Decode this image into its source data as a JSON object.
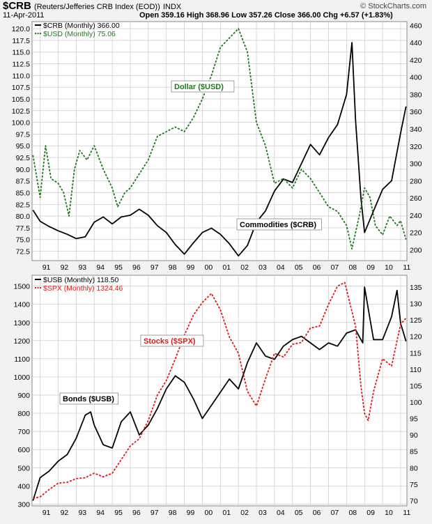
{
  "header": {
    "symbol": "$CRB",
    "name": "(Reuters/Jefferies CRB Index (EOD))",
    "exchange": "INDX",
    "date": "11-Apr-2011",
    "ohlc": "Open 359.16  High 368.96  Low 357.26  Close 366.00  Chg +6.57 (+1.83%)",
    "credit": "© StockCharts.com"
  },
  "colors": {
    "black": "#000000",
    "green": "#1a7a1a",
    "red": "#e01818",
    "grid": "#c9c9c9",
    "panel": "#ffffff"
  },
  "chart_data": [
    {
      "type": "line",
      "panel": "top",
      "x_tick_labels": [
        "91",
        "92",
        "93",
        "94",
        "95",
        "96",
        "97",
        "98",
        "99",
        "00",
        "01",
        "02",
        "03",
        "04",
        "05",
        "06",
        "07",
        "08",
        "09",
        "10",
        "11"
      ],
      "x_range": [
        1990.55,
        2011.35
      ],
      "left_axis": {
        "ticks": [
          "72.5",
          "75.0",
          "77.5",
          "80.0",
          "82.5",
          "85.0",
          "87.5",
          "90.0",
          "92.5",
          "95.0",
          "97.5",
          "100.0",
          "102.5",
          "105.0",
          "107.5",
          "110.0",
          "112.5",
          "115.0",
          "117.5",
          "120.0"
        ],
        "range": [
          70.5,
          121.5
        ]
      },
      "right_axis": {
        "ticks": [
          "200",
          "220",
          "240",
          "260",
          "280",
          "300",
          "320",
          "340",
          "360",
          "380",
          "400",
          "420",
          "440",
          "460"
        ],
        "range": [
          187.5,
          464.3
        ]
      },
      "annotations": [
        "Dollar ($USD)",
        "Commodities ($CRB)"
      ],
      "series": [
        {
          "name": "$CRB (Monthly) 366.00",
          "axis": "right",
          "color": "black",
          "style": "solid",
          "x": [
            1990.6,
            1991.0,
            1991.5,
            1992.0,
            1992.5,
            1993.0,
            1993.5,
            1994.0,
            1994.5,
            1995.0,
            1995.5,
            1996.0,
            1996.5,
            1997.0,
            1997.5,
            1998.0,
            1998.5,
            1999.0,
            1999.5,
            2000.0,
            2000.5,
            2001.0,
            2001.5,
            2002.0,
            2002.5,
            2003.0,
            2003.5,
            2004.0,
            2004.5,
            2005.0,
            2005.5,
            2006.0,
            2006.5,
            2007.0,
            2007.5,
            2008.0,
            2008.3,
            2008.5,
            2008.8,
            2009.0,
            2009.5,
            2010.0,
            2010.5,
            2011.0,
            2011.3
          ],
          "y": [
            246,
            233,
            227,
            222,
            218,
            213,
            215,
            232,
            238,
            230,
            238,
            240,
            247,
            240,
            228,
            220,
            206,
            195,
            208,
            220,
            225,
            218,
            207,
            193,
            205,
            232,
            245,
            268,
            282,
            278,
            300,
            322,
            310,
            330,
            345,
            380,
            440,
            350,
            260,
            220,
            245,
            270,
            280,
            335,
            366
          ]
        },
        {
          "name": "$USD (Monthly) 75.06",
          "axis": "left",
          "color": "green",
          "style": "dashed",
          "x": [
            1990.6,
            1991.0,
            1991.3,
            1991.6,
            1992.0,
            1992.3,
            1992.6,
            1992.9,
            1993.2,
            1993.6,
            1994.0,
            1994.5,
            1995.0,
            1995.3,
            1995.7,
            1996.0,
            1996.5,
            1997.0,
            1997.5,
            1998.0,
            1998.5,
            1999.0,
            1999.5,
            2000.0,
            2000.5,
            2001.0,
            2001.5,
            2002.0,
            2002.5,
            2003.0,
            2003.5,
            2004.0,
            2004.5,
            2005.0,
            2005.5,
            2006.0,
            2006.5,
            2007.0,
            2007.5,
            2008.0,
            2008.3,
            2008.7,
            2009.0,
            2009.3,
            2009.6,
            2010.0,
            2010.4,
            2010.8,
            2011.0,
            2011.3
          ],
          "y": [
            93,
            84,
            95,
            88,
            87,
            85,
            80,
            90,
            94,
            92,
            95,
            90,
            86,
            82,
            85,
            86,
            89,
            92,
            97,
            98,
            99,
            98,
            101,
            105,
            110,
            116,
            118,
            120,
            115,
            100,
            95,
            87,
            88,
            86,
            90,
            88,
            85,
            82,
            81,
            78,
            73,
            80,
            86,
            84,
            78,
            76,
            80,
            78,
            79,
            75
          ]
        }
      ]
    },
    {
      "type": "line",
      "panel": "bottom",
      "x_tick_labels": [
        "91",
        "92",
        "93",
        "94",
        "95",
        "96",
        "97",
        "98",
        "99",
        "00",
        "01",
        "02",
        "03",
        "04",
        "05",
        "06",
        "07",
        "08",
        "09",
        "10",
        "11"
      ],
      "x_range": [
        1990.55,
        2011.35
      ],
      "left_axis": {
        "ticks": [
          "300",
          "400",
          "500",
          "600",
          "700",
          "800",
          "900",
          "1000",
          "1100",
          "1200",
          "1300",
          "1400",
          "1500"
        ],
        "range": [
          290,
          1560
        ]
      },
      "right_axis": {
        "ticks": [
          "70",
          "75",
          "80",
          "85",
          "90",
          "95",
          "100",
          "105",
          "110",
          "115",
          "120",
          "125",
          "130",
          "135"
        ],
        "range": [
          68.4,
          138.6
        ]
      },
      "annotations": [
        "Stocks ($SPX)",
        "Bonds ($USB)"
      ],
      "series": [
        {
          "name": "$USB (Monthly) 118.50",
          "axis": "right",
          "color": "black",
          "style": "solid",
          "x": [
            1990.6,
            1991.0,
            1991.5,
            1992.0,
            1992.5,
            1993.0,
            1993.5,
            1993.8,
            1994.0,
            1994.5,
            1995.0,
            1995.5,
            1996.0,
            1996.5,
            1997.0,
            1997.5,
            1998.0,
            1998.5,
            1999.0,
            1999.5,
            2000.0,
            2000.5,
            2001.0,
            2001.5,
            2002.0,
            2002.5,
            2003.0,
            2003.5,
            2004.0,
            2004.5,
            2005.0,
            2005.5,
            2006.0,
            2006.5,
            2007.0,
            2007.5,
            2008.0,
            2008.5,
            2008.9,
            2009.0,
            2009.5,
            2010.0,
            2010.5,
            2010.8,
            2011.0,
            2011.3
          ],
          "y": [
            70,
            77,
            79,
            82,
            84,
            89,
            96,
            97,
            93,
            87,
            86,
            94,
            97,
            90,
            93,
            98,
            104,
            108,
            106,
            101,
            95,
            99,
            103,
            107,
            104,
            112,
            118,
            114,
            113,
            117,
            119,
            120,
            118,
            116,
            118,
            117,
            121,
            122,
            118,
            135,
            119,
            119,
            126,
            134,
            124,
            118.5
          ]
        },
        {
          "name": "$SPX (Monthly) 1324.46",
          "axis": "left",
          "color": "red",
          "style": "dashed",
          "x": [
            1990.6,
            1991.0,
            1991.5,
            1992.0,
            1992.5,
            1993.0,
            1993.5,
            1994.0,
            1994.5,
            1995.0,
            1995.5,
            1996.0,
            1996.5,
            1997.0,
            1997.5,
            1998.0,
            1998.5,
            1999.0,
            1999.5,
            2000.0,
            2000.5,
            2001.0,
            2001.5,
            2002.0,
            2002.5,
            2003.0,
            2003.5,
            2004.0,
            2004.5,
            2005.0,
            2005.5,
            2006.0,
            2006.5,
            2007.0,
            2007.5,
            2007.9,
            2008.5,
            2008.8,
            2009.0,
            2009.2,
            2009.5,
            2010.0,
            2010.5,
            2011.0,
            2011.3
          ],
          "y": [
            330,
            340,
            380,
            415,
            420,
            440,
            445,
            470,
            450,
            470,
            545,
            620,
            660,
            760,
            900,
            980,
            1100,
            1230,
            1340,
            1410,
            1460,
            1370,
            1220,
            1130,
            920,
            840,
            990,
            1130,
            1110,
            1180,
            1190,
            1270,
            1280,
            1400,
            1500,
            1520,
            1280,
            950,
            800,
            760,
            920,
            1100,
            1060,
            1290,
            1324
          ]
        }
      ]
    }
  ]
}
